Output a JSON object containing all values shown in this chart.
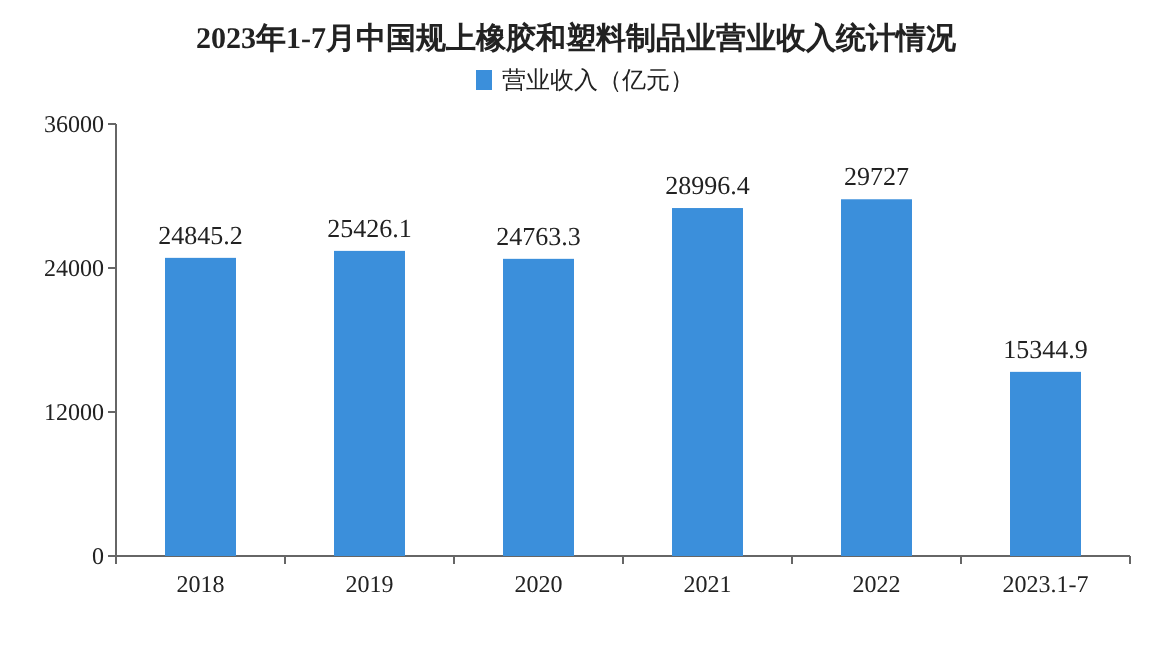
{
  "chart_data": {
    "type": "bar",
    "title": "2023年1-7月中国规上橡胶和塑料制品业营业收入统计情况",
    "categories": [
      "2018",
      "2019",
      "2020",
      "2021",
      "2022",
      "2023.1-7"
    ],
    "series": [
      {
        "name": "营业收入（亿元）",
        "color": "#3b8fdb",
        "values": [
          24845.2,
          25426.1,
          24763.3,
          28996.4,
          29727,
          15344.9
        ]
      }
    ],
    "value_labels": [
      "24845.2",
      "25426.1",
      "24763.3",
      "28996.4",
      "29727",
      "15344.9"
    ],
    "ylim": [
      0,
      36000
    ],
    "yticks": [
      0,
      12000,
      24000,
      36000
    ],
    "legend": "top",
    "grid": false
  }
}
